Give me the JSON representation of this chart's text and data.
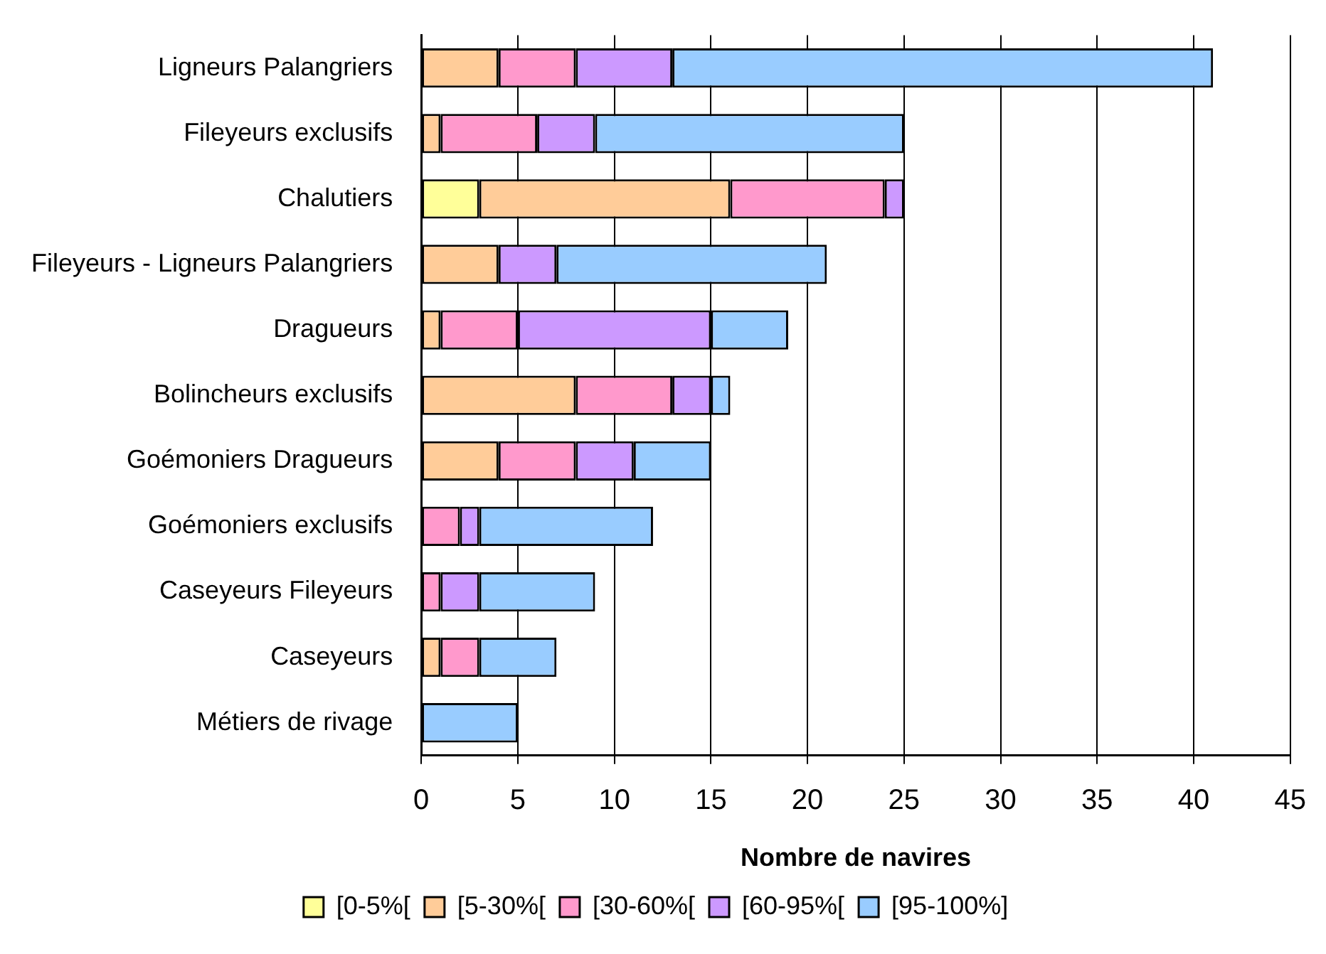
{
  "chart_data": {
    "type": "bar",
    "orientation": "horizontal",
    "stacked": true,
    "xlabel": "Nombre de navires",
    "categories": [
      "Ligneurs Palangriers",
      "Fileyeurs exclusifs",
      "Chalutiers",
      "Fileyeurs - Ligneurs Palangriers",
      "Dragueurs",
      "Bolincheurs exclusifs",
      "Goémoniers Dragueurs",
      "Goémoniers exclusifs",
      "Caseyeurs Fileyeurs",
      "Caseyeurs",
      "Métiers de rivage"
    ],
    "series": [
      {
        "name": "[0-5%[",
        "color": "#ffff99",
        "values": [
          0,
          0,
          3,
          0,
          0,
          0,
          0,
          0,
          0,
          0,
          0
        ]
      },
      {
        "name": "[5-30%[",
        "color": "#ffcc99",
        "values": [
          4,
          1,
          13,
          4,
          1,
          8,
          4,
          0,
          0,
          1,
          0
        ]
      },
      {
        "name": "[30-60%[",
        "color": "#ff99cc",
        "values": [
          4,
          5,
          8,
          0,
          4,
          5,
          4,
          2,
          1,
          2,
          0
        ]
      },
      {
        "name": "[60-95%[",
        "color": "#cc99ff",
        "values": [
          5,
          3,
          1,
          3,
          10,
          2,
          3,
          1,
          2,
          0,
          0
        ]
      },
      {
        "name": "[95-100%]",
        "color": "#99ccff",
        "values": [
          28,
          16,
          0,
          14,
          4,
          1,
          4,
          9,
          6,
          4,
          5
        ]
      }
    ],
    "xlim": [
      0,
      45
    ],
    "xticks": [
      0,
      5,
      10,
      15,
      20,
      25,
      30,
      35,
      40,
      45
    ],
    "grid": "x",
    "legend": "bottom"
  }
}
